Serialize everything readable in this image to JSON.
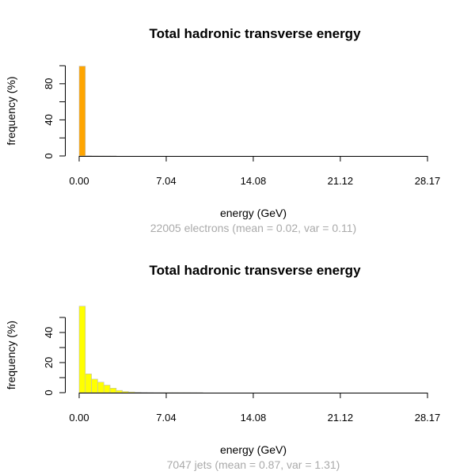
{
  "chart_data": [
    {
      "type": "bar",
      "title": "Total hadronic transverse energy",
      "xlabel": "energy (GeV)",
      "ylabel": "frequency (%)",
      "subtitle": "22005 electrons (mean = 0.02, var = 0.11)",
      "color": "#ffa500",
      "xlim": [
        0,
        28.17
      ],
      "ylim": [
        0,
        100
      ],
      "xticks": [
        "0.00",
        "7.04",
        "14.08",
        "21.12",
        "28.17"
      ],
      "xtick_values": [
        0,
        7.04,
        14.08,
        21.12,
        28.17
      ],
      "yticks": [
        "0",
        "40",
        "80"
      ],
      "ytick_values": [
        0,
        40,
        80
      ],
      "yticks_minor": [
        20,
        60,
        100
      ],
      "bin_width": 0.5,
      "values": [
        99.5,
        0.3,
        0.1,
        0.05,
        0.03,
        0.02
      ]
    },
    {
      "type": "bar",
      "title": "Total hadronic transverse energy",
      "xlabel": "energy (GeV)",
      "ylabel": "frequency (%)",
      "subtitle": "7047 jets (mean = 0.87, var = 1.31)",
      "color": "#ffff00",
      "xlim": [
        0,
        28.17
      ],
      "ylim": [
        0,
        60
      ],
      "xticks": [
        "0.00",
        "7.04",
        "14.08",
        "21.12",
        "28.17"
      ],
      "xtick_values": [
        0,
        7.04,
        14.08,
        21.12,
        28.17
      ],
      "yticks": [
        "0",
        "20",
        "40"
      ],
      "ytick_values": [
        0,
        20,
        40
      ],
      "yticks_minor": [
        10,
        30,
        50
      ],
      "bin_width": 0.5,
      "values": [
        57.5,
        12.5,
        9,
        7,
        5,
        3,
        1.5,
        0.8,
        0.5,
        0.3,
        0.2,
        0.15,
        0.1,
        0.08,
        0.06,
        0.05,
        0.04,
        0.03,
        0.02,
        0.01
      ]
    }
  ]
}
